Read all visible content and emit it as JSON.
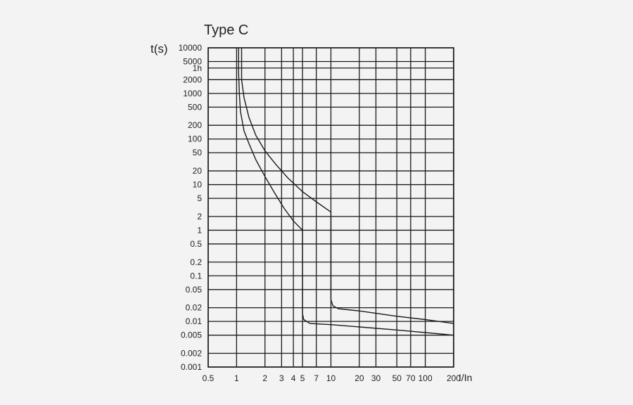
{
  "chart_data": {
    "type": "line",
    "title": "Type C",
    "xlabel": "I/In",
    "ylabel": "t(s)",
    "x_scale": "log",
    "y_scale": "log",
    "xlim": [
      0.5,
      200
    ],
    "ylim": [
      0.001,
      10000
    ],
    "grid": true,
    "x_ticks": [
      {
        "value": 0.5,
        "label": "0.5"
      },
      {
        "value": 1,
        "label": "1"
      },
      {
        "value": 2,
        "label": "2"
      },
      {
        "value": 3,
        "label": "3"
      },
      {
        "value": 4,
        "label": "4"
      },
      {
        "value": 5,
        "label": "5"
      },
      {
        "value": 7,
        "label": "7"
      },
      {
        "value": 10,
        "label": "10"
      },
      {
        "value": 20,
        "label": "20"
      },
      {
        "value": 30,
        "label": "30"
      },
      {
        "value": 50,
        "label": "50"
      },
      {
        "value": 70,
        "label": "70"
      },
      {
        "value": 100,
        "label": "100"
      },
      {
        "value": 200,
        "label": "200"
      }
    ],
    "y_ticks": [
      {
        "value": 0.001,
        "label": "0.001"
      },
      {
        "value": 0.002,
        "label": "0.002"
      },
      {
        "value": 0.005,
        "label": "0.005"
      },
      {
        "value": 0.01,
        "label": "0.01"
      },
      {
        "value": 0.02,
        "label": "0.02"
      },
      {
        "value": 0.05,
        "label": "0.05"
      },
      {
        "value": 0.1,
        "label": "0.1"
      },
      {
        "value": 0.2,
        "label": "0.2"
      },
      {
        "value": 0.5,
        "label": "0.5"
      },
      {
        "value": 1,
        "label": "1"
      },
      {
        "value": 2,
        "label": "2"
      },
      {
        "value": 5,
        "label": "5"
      },
      {
        "value": 10,
        "label": "10"
      },
      {
        "value": 20,
        "label": "20"
      },
      {
        "value": 50,
        "label": "50"
      },
      {
        "value": 100,
        "label": "100"
      },
      {
        "value": 200,
        "label": "200"
      },
      {
        "value": 500,
        "label": "500"
      },
      {
        "value": 1000,
        "label": "1000"
      },
      {
        "value": 2000,
        "label": "2000"
      },
      {
        "value": 3600,
        "label": "1h"
      },
      {
        "value": 5000,
        "label": "5000"
      },
      {
        "value": 10000,
        "label": "10000"
      }
    ],
    "series": [
      {
        "points": [
          [
            1.05,
            10000
          ],
          [
            1.05,
            3000
          ],
          [
            1.07,
            1000
          ],
          [
            1.1,
            400
          ],
          [
            1.2,
            150
          ],
          [
            1.35,
            80
          ],
          [
            1.6,
            35
          ],
          [
            2.0,
            15
          ],
          [
            2.6,
            6
          ],
          [
            3.2,
            3
          ],
          [
            4.0,
            1.6
          ],
          [
            5.0,
            1.0
          ],
          [
            5.0,
            0.4
          ],
          [
            5.0,
            0.1
          ],
          [
            5.0,
            0.03
          ],
          [
            5.0,
            0.015
          ],
          [
            5.15,
            0.011
          ],
          [
            6.0,
            0.009
          ],
          [
            10,
            0.0085
          ],
          [
            50,
            0.0065
          ],
          [
            200,
            0.005
          ]
        ]
      },
      {
        "points": [
          [
            1.13,
            10000
          ],
          [
            1.13,
            2000
          ],
          [
            1.2,
            800
          ],
          [
            1.35,
            300
          ],
          [
            1.6,
            120
          ],
          [
            2.0,
            55
          ],
          [
            2.6,
            28
          ],
          [
            3.5,
            14
          ],
          [
            5.0,
            7
          ],
          [
            7.0,
            4.2
          ],
          [
            10,
            2.5
          ],
          [
            10,
            1
          ],
          [
            10,
            0.3
          ],
          [
            10,
            0.1
          ],
          [
            10,
            0.03
          ],
          [
            10.5,
            0.022
          ],
          [
            12,
            0.019
          ],
          [
            20,
            0.017
          ],
          [
            50,
            0.013
          ],
          [
            100,
            0.011
          ],
          [
            200,
            0.009
          ]
        ]
      }
    ]
  }
}
